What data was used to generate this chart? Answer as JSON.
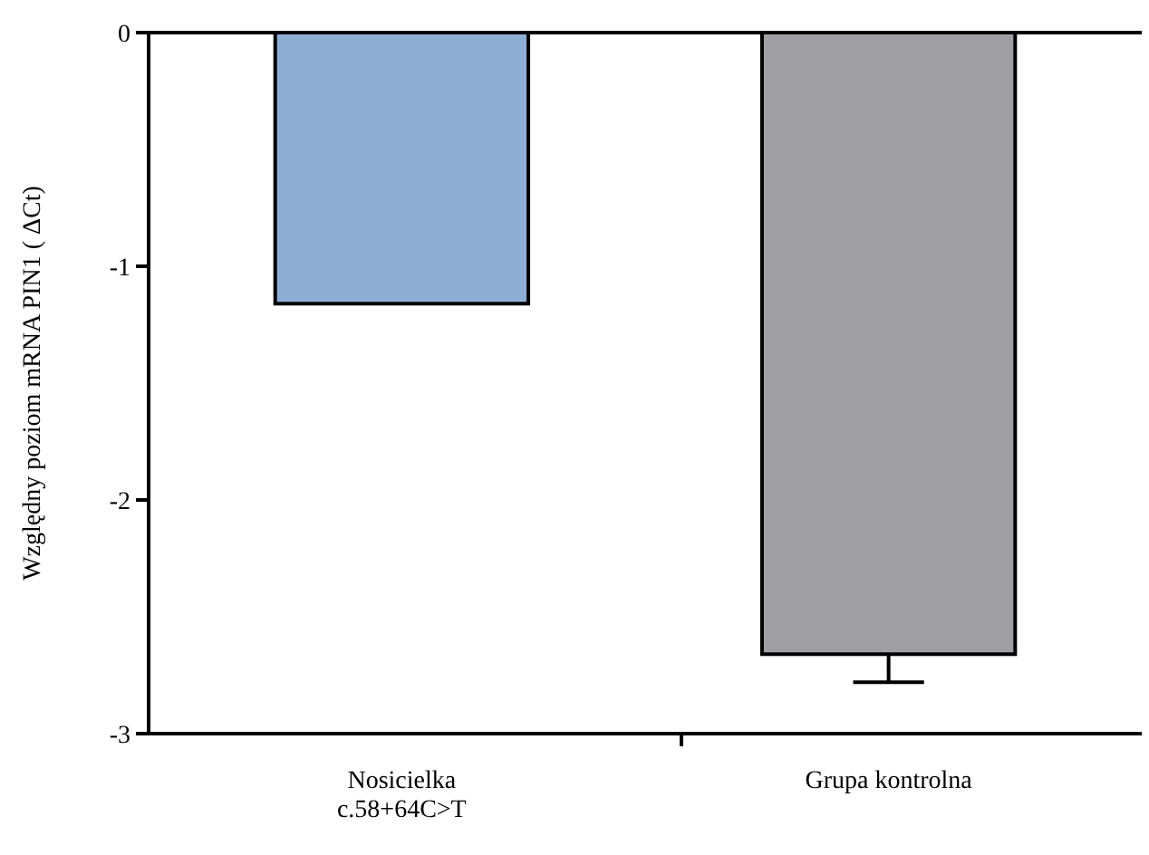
{
  "chart_data": {
    "type": "bar",
    "ylabel": "Względny poziom mRNA PIN1 ( ΔCt)",
    "categories": [
      "Nosicielka\nc.58+64C>T",
      "Grupa kontrolna"
    ],
    "values": [
      -1.16,
      -2.66
    ],
    "colors": [
      "#8eadd4",
      "#a09fa4"
    ],
    "errors": [
      null,
      0.12
    ],
    "ylim": [
      -3,
      0
    ],
    "yticks": [
      {
        "value": -3,
        "label": "-3"
      },
      {
        "value": -2,
        "label": "-2"
      },
      {
        "value": -1,
        "label": "-1"
      },
      0
    ]
  }
}
